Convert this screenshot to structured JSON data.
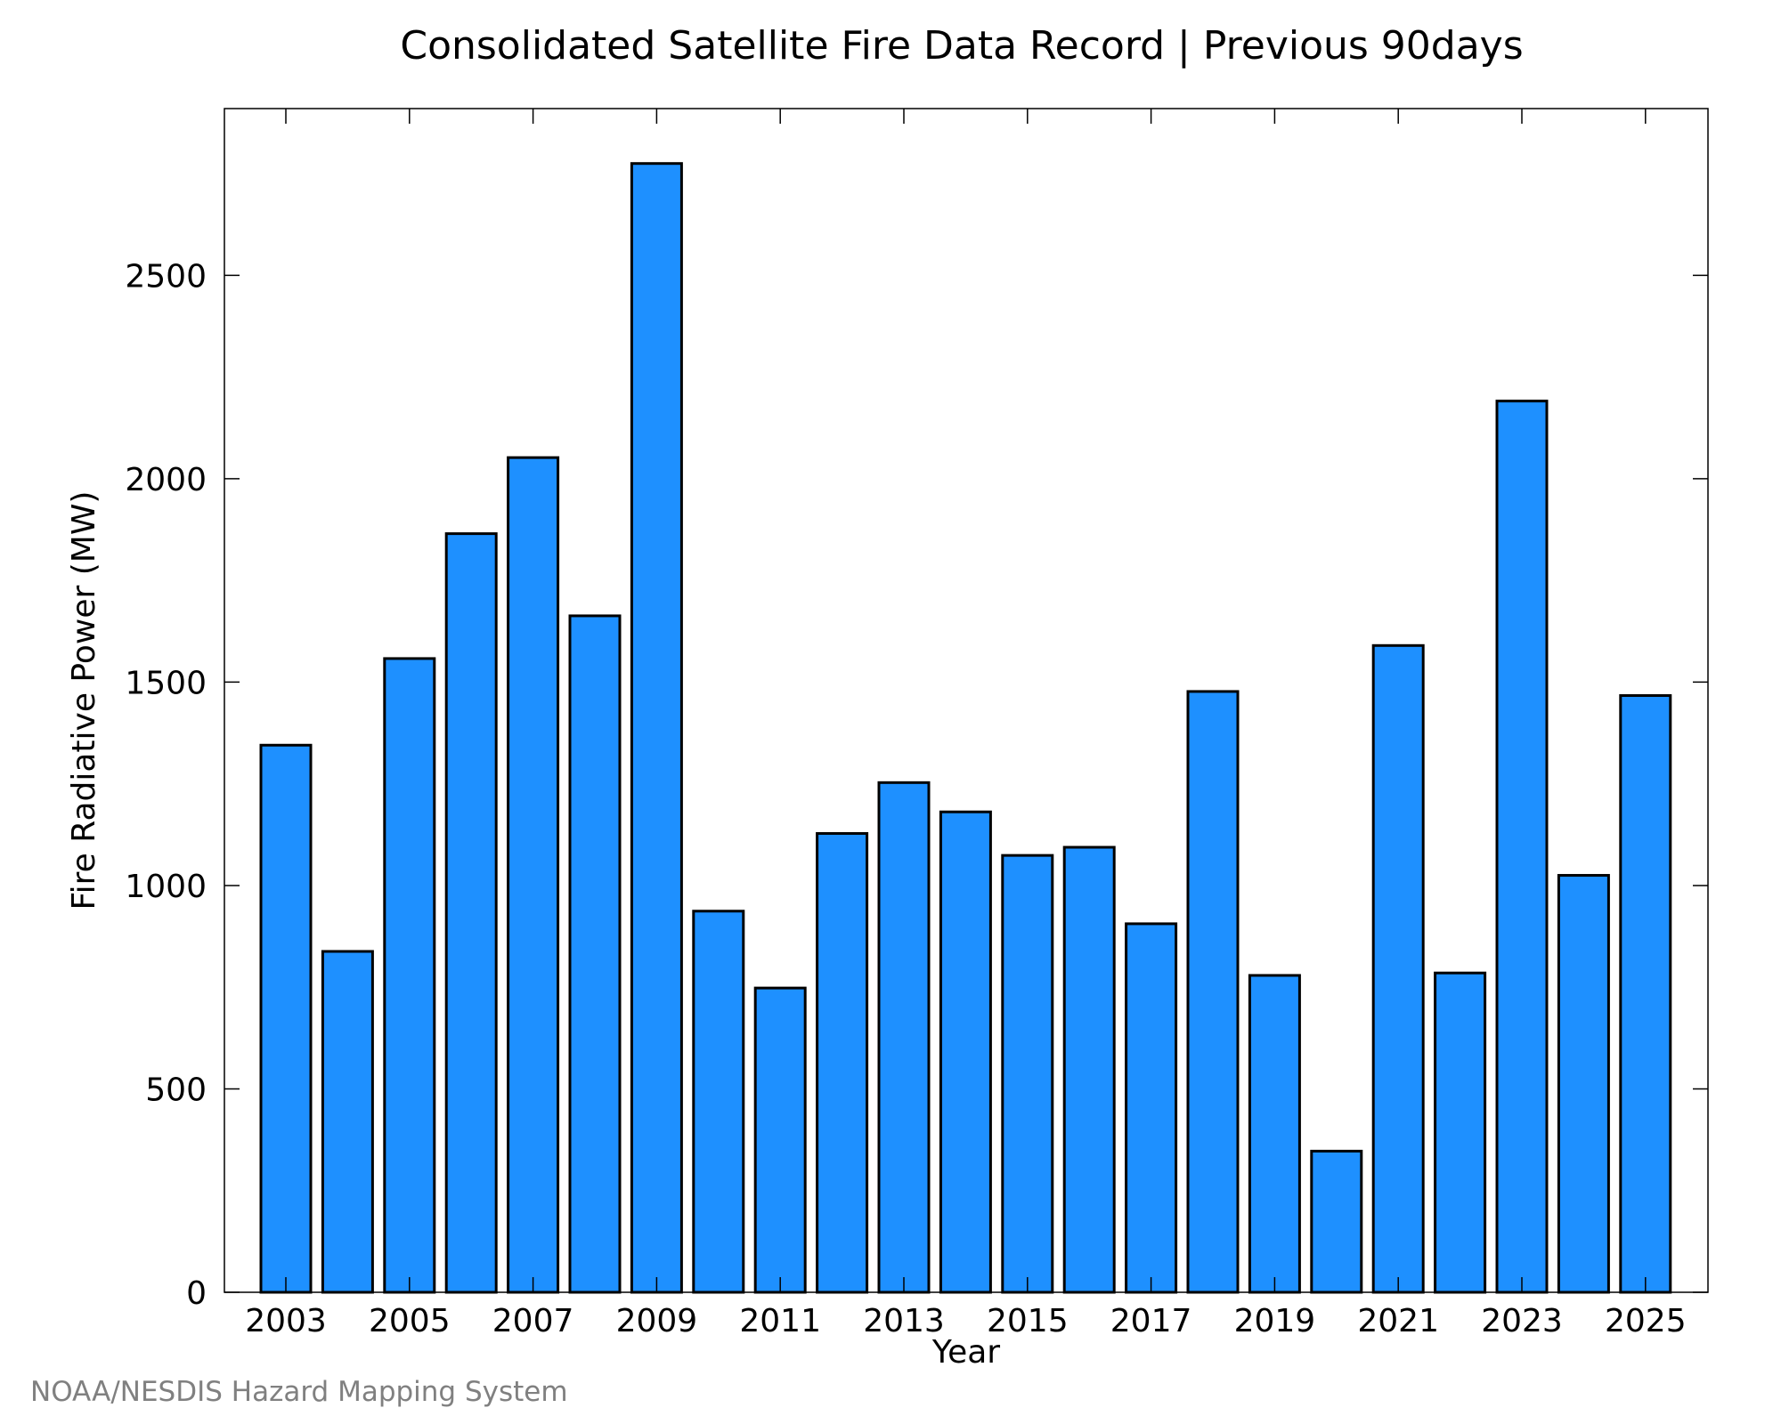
{
  "chart_data": {
    "type": "bar",
    "title": "Consolidated Satellite Fire Data Record | Previous 90days",
    "xlabel": "Year",
    "ylabel": "Fire Radiative Power (MW)",
    "categories": [
      "2003",
      "2004",
      "2005",
      "2006",
      "2007",
      "2008",
      "2009",
      "2010",
      "2011",
      "2012",
      "2013",
      "2014",
      "2015",
      "2016",
      "2017",
      "2018",
      "2019",
      "2020",
      "2021",
      "2022",
      "2023",
      "2024",
      "2025"
    ],
    "values": [
      1345,
      838,
      1558,
      1865,
      2052,
      1663,
      2775,
      937,
      748,
      1128,
      1253,
      1181,
      1074,
      1094,
      906,
      1477,
      779,
      347,
      1590,
      785,
      2191,
      1025,
      1467
    ],
    "x_tick_labels": [
      "2003",
      "2005",
      "2007",
      "2009",
      "2011",
      "2013",
      "2015",
      "2017",
      "2019",
      "2021",
      "2023",
      "2025"
    ],
    "y_ticks": [
      0,
      500,
      1000,
      1500,
      2000,
      2500
    ],
    "ylim": [
      0,
      2910
    ],
    "grid": false,
    "bar_color": "#1E90FF"
  },
  "credit": "NOAA/NESDIS Hazard Mapping System"
}
